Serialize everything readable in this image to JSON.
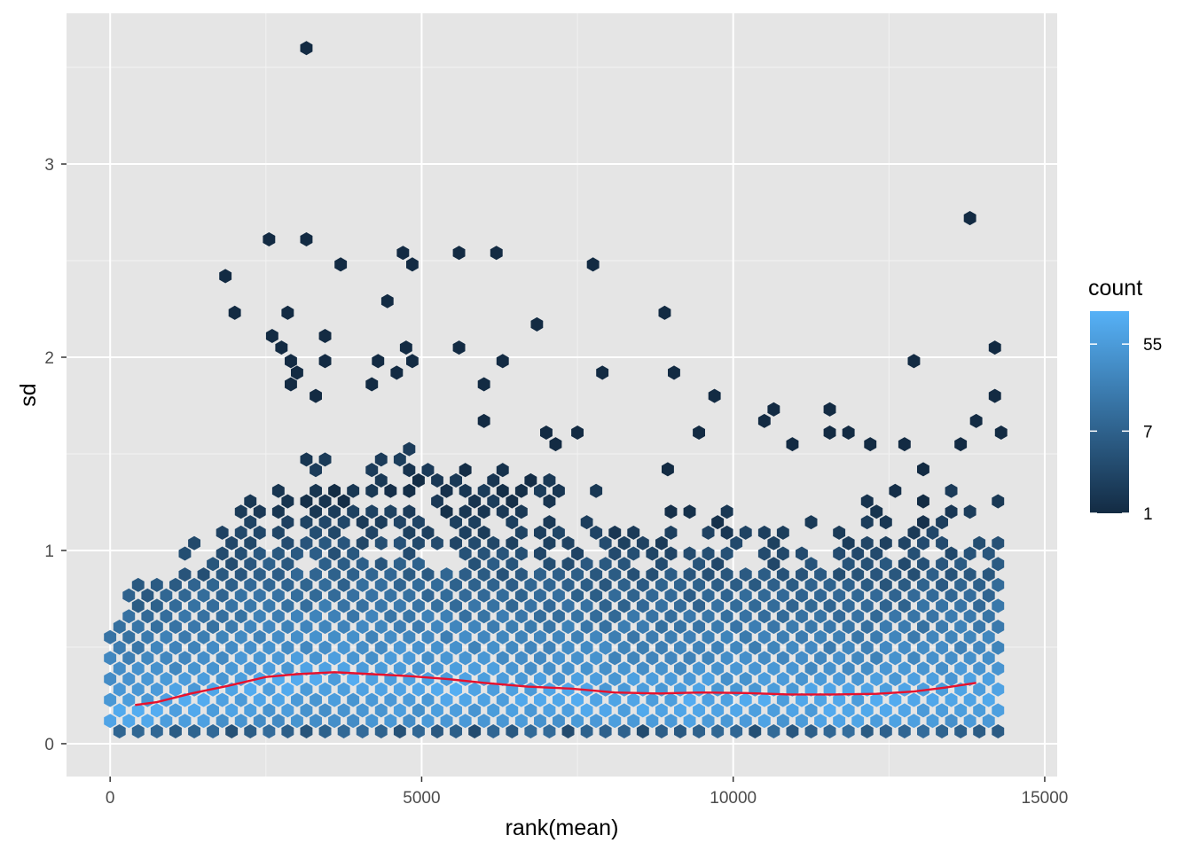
{
  "chart_data": {
    "type": "hexbin",
    "title": "",
    "xlabel": "rank(mean)",
    "ylabel": "sd",
    "xlim": [
      -700,
      15200
    ],
    "ylim": [
      -0.17,
      3.78
    ],
    "x_ticks": [
      0,
      5000,
      10000,
      15000
    ],
    "x_tick_labels": [
      "0",
      "5000",
      "10000",
      "15000"
    ],
    "y_ticks": [
      0,
      1,
      2,
      3
    ],
    "y_tick_labels": [
      "0",
      "1",
      "2",
      "3"
    ],
    "grid": true,
    "panel_background": "#e5e5e5",
    "legend": {
      "title": "count",
      "placement": "right",
      "scale": "log",
      "low_color": "#132b43",
      "high_color": "#56b1f7",
      "min": 1,
      "max": 120,
      "breaks": [
        1,
        7,
        55
      ],
      "break_labels": [
        "1",
        "7",
        "55"
      ]
    },
    "trend_line": {
      "color": "#e8112d",
      "x": [
        400,
        750,
        1300,
        1900,
        2500,
        3000,
        3600,
        4200,
        4800,
        5400,
        6000,
        6700,
        7400,
        8100,
        8800,
        9500,
        10200,
        10900,
        11600,
        12300,
        12900,
        13400,
        13900
      ],
      "y": [
        0.2,
        0.215,
        0.26,
        0.3,
        0.345,
        0.36,
        0.37,
        0.36,
        0.35,
        0.335,
        0.315,
        0.295,
        0.285,
        0.265,
        0.26,
        0.265,
        0.262,
        0.255,
        0.255,
        0.258,
        0.27,
        0.29,
        0.315
      ]
    },
    "outlier_hexes": [
      [
        3150,
        3.6
      ],
      [
        13800,
        2.72
      ],
      [
        2550,
        2.61
      ],
      [
        3150,
        2.61
      ],
      [
        4700,
        2.54
      ],
      [
        5600,
        2.54
      ],
      [
        6200,
        2.54
      ],
      [
        1850,
        2.42
      ],
      [
        3700,
        2.48
      ],
      [
        4850,
        2.48
      ],
      [
        7750,
        2.48
      ],
      [
        2000,
        2.23
      ],
      [
        2850,
        2.23
      ],
      [
        4450,
        2.29
      ],
      [
        8900,
        2.23
      ],
      [
        6850,
        2.17
      ],
      [
        2600,
        2.11
      ],
      [
        3450,
        2.11
      ],
      [
        2750,
        2.05
      ],
      [
        4750,
        2.05
      ],
      [
        5600,
        2.05
      ],
      [
        14200,
        2.05
      ],
      [
        2900,
        1.98
      ],
      [
        3450,
        1.98
      ],
      [
        4300,
        1.98
      ],
      [
        4850,
        1.98
      ],
      [
        6300,
        1.98
      ],
      [
        12900,
        1.98
      ],
      [
        3000,
        1.92
      ],
      [
        4600,
        1.92
      ],
      [
        7900,
        1.92
      ],
      [
        9050,
        1.92
      ],
      [
        2900,
        1.86
      ],
      [
        4200,
        1.86
      ],
      [
        6000,
        1.86
      ],
      [
        3300,
        1.8
      ],
      [
        9700,
        1.8
      ],
      [
        14200,
        1.8
      ],
      [
        10650,
        1.73
      ],
      [
        11550,
        1.73
      ],
      [
        13900,
        1.67
      ],
      [
        10500,
        1.67
      ],
      [
        6000,
        1.67
      ],
      [
        14300,
        1.61
      ],
      [
        9450,
        1.61
      ],
      [
        11550,
        1.61
      ],
      [
        11850,
        1.61
      ],
      [
        10950,
        1.55
      ],
      [
        12200,
        1.55
      ],
      [
        12750,
        1.55
      ],
      [
        13650,
        1.55
      ],
      [
        13050,
        1.42
      ],
      [
        8950,
        1.42
      ],
      [
        7000,
        1.61
      ],
      [
        7150,
        1.55
      ],
      [
        7500,
        1.61
      ]
    ]
  }
}
